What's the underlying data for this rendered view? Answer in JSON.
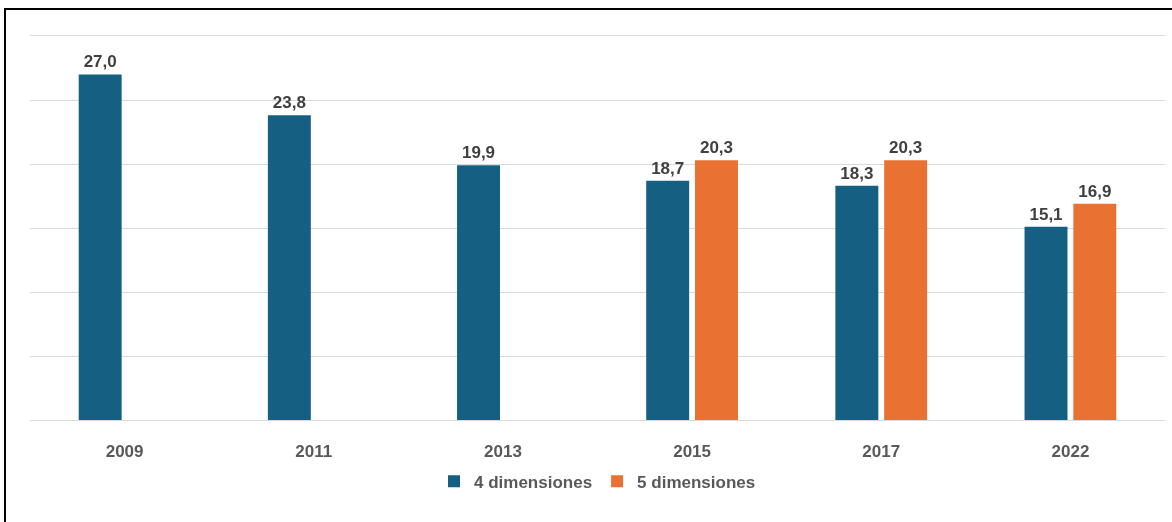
{
  "chart_data": {
    "type": "bar",
    "categories": [
      "2009",
      "2011",
      "2013",
      "2015",
      "2017",
      "2022"
    ],
    "series": [
      {
        "name": "4 dimensiones",
        "color": "#156082",
        "values": [
          27.0,
          23.8,
          19.9,
          18.7,
          18.3,
          15.1
        ],
        "value_labels": [
          "27,0",
          "23,8",
          "19,9",
          "18,7",
          "18,3",
          "15,1"
        ]
      },
      {
        "name": "5 dimensiones",
        "color": "#e97132",
        "values": [
          null,
          null,
          null,
          20.3,
          20.3,
          16.9
        ],
        "value_labels": [
          null,
          null,
          null,
          "20,3",
          "20,3",
          "16,9"
        ]
      }
    ],
    "ylim": [
      0,
      30
    ],
    "yticks": [
      {
        "value": 0,
        "label": null
      },
      {
        "value": 5,
        "label": null
      },
      {
        "value": 10,
        "label": null
      },
      {
        "value": 15,
        "label": null
      },
      {
        "value": 20,
        "label": null
      },
      {
        "value": 25,
        "label": null
      },
      {
        "value": 30,
        "label": null
      }
    ],
    "tick_labels": "x",
    "grid": "y",
    "legend": "bottom"
  }
}
